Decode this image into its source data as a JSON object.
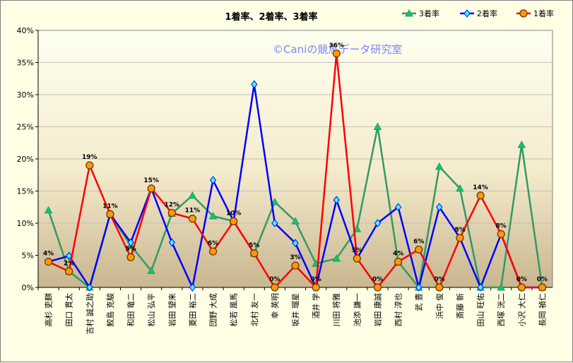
{
  "chart_data": {
    "type": "line",
    "title": "1着率、2着率、3着率",
    "watermark": "©Caniの競馬データ研究室",
    "ylim": [
      0,
      40
    ],
    "yticks": [
      "0%",
      "5%",
      "10%",
      "15%",
      "20%",
      "25%",
      "30%",
      "35%",
      "40%"
    ],
    "categories": [
      "高杉 吏麒",
      "田口 貫太",
      "吉村 誠之助",
      "鮫島 克駿",
      "和田 竜二",
      "松山 弘平",
      "岩田 望来",
      "菱田 裕二",
      "団野 大成",
      "松若 風馬",
      "北村 友一",
      "幸 英明",
      "坂井 瑠星",
      "酒井 学",
      "川田 将雅",
      "池添 謙一",
      "岩田 康誠",
      "西村 淳也",
      "武 豊",
      "浜中 俊",
      "斎藤 新",
      "田山 旺佑",
      "西塚 洸二",
      "小沢 大仁",
      "長岡 禎仁"
    ],
    "legend_position": "top-right",
    "series": [
      {
        "name": "3着率",
        "color": "#339966",
        "marker": "triangle",
        "marker_fill": "#00cc66",
        "values": [
          12,
          2.5,
          0,
          11.4,
          6.5,
          2.6,
          11.5,
          14.3,
          11.1,
          10.3,
          5.3,
          13.3,
          10.3,
          3.7,
          4.5,
          9.1,
          25,
          4,
          0,
          18.8,
          15.4,
          0,
          0,
          22.2,
          0
        ]
      },
      {
        "name": "2着率",
        "color": "#0000ff",
        "marker": "diamond",
        "marker_fill": "#33ffff",
        "values": [
          4,
          4.9,
          0,
          11.4,
          7,
          15.4,
          7,
          0,
          16.7,
          10.3,
          31.6,
          10,
          6.9,
          0,
          13.6,
          4.5,
          10,
          12.5,
          0,
          12.5,
          7.7,
          0,
          8.3,
          0,
          0
        ]
      },
      {
        "name": "1着率",
        "color": "#ff0000",
        "marker": "circle",
        "marker_fill": "#ff9900",
        "values": [
          4,
          2.5,
          19,
          11.4,
          4.7,
          15.4,
          11.6,
          10.7,
          5.6,
          10.3,
          5.3,
          0,
          3.4,
          0,
          36.4,
          4.5,
          0,
          4,
          5.9,
          0,
          7.7,
          14.3,
          8.3,
          0,
          0
        ]
      }
    ],
    "data_labels": [
      "4%",
      "2%",
      "19%",
      "11%",
      "5%",
      "15%",
      "12%",
      "11%",
      "6%",
      "10%",
      "5%",
      "0%",
      "3%",
      "0%",
      "36%",
      "5%",
      "0%",
      "4%",
      "6%",
      "0%",
      "8%",
      "14%",
      "8%",
      "0%",
      "0%"
    ]
  }
}
